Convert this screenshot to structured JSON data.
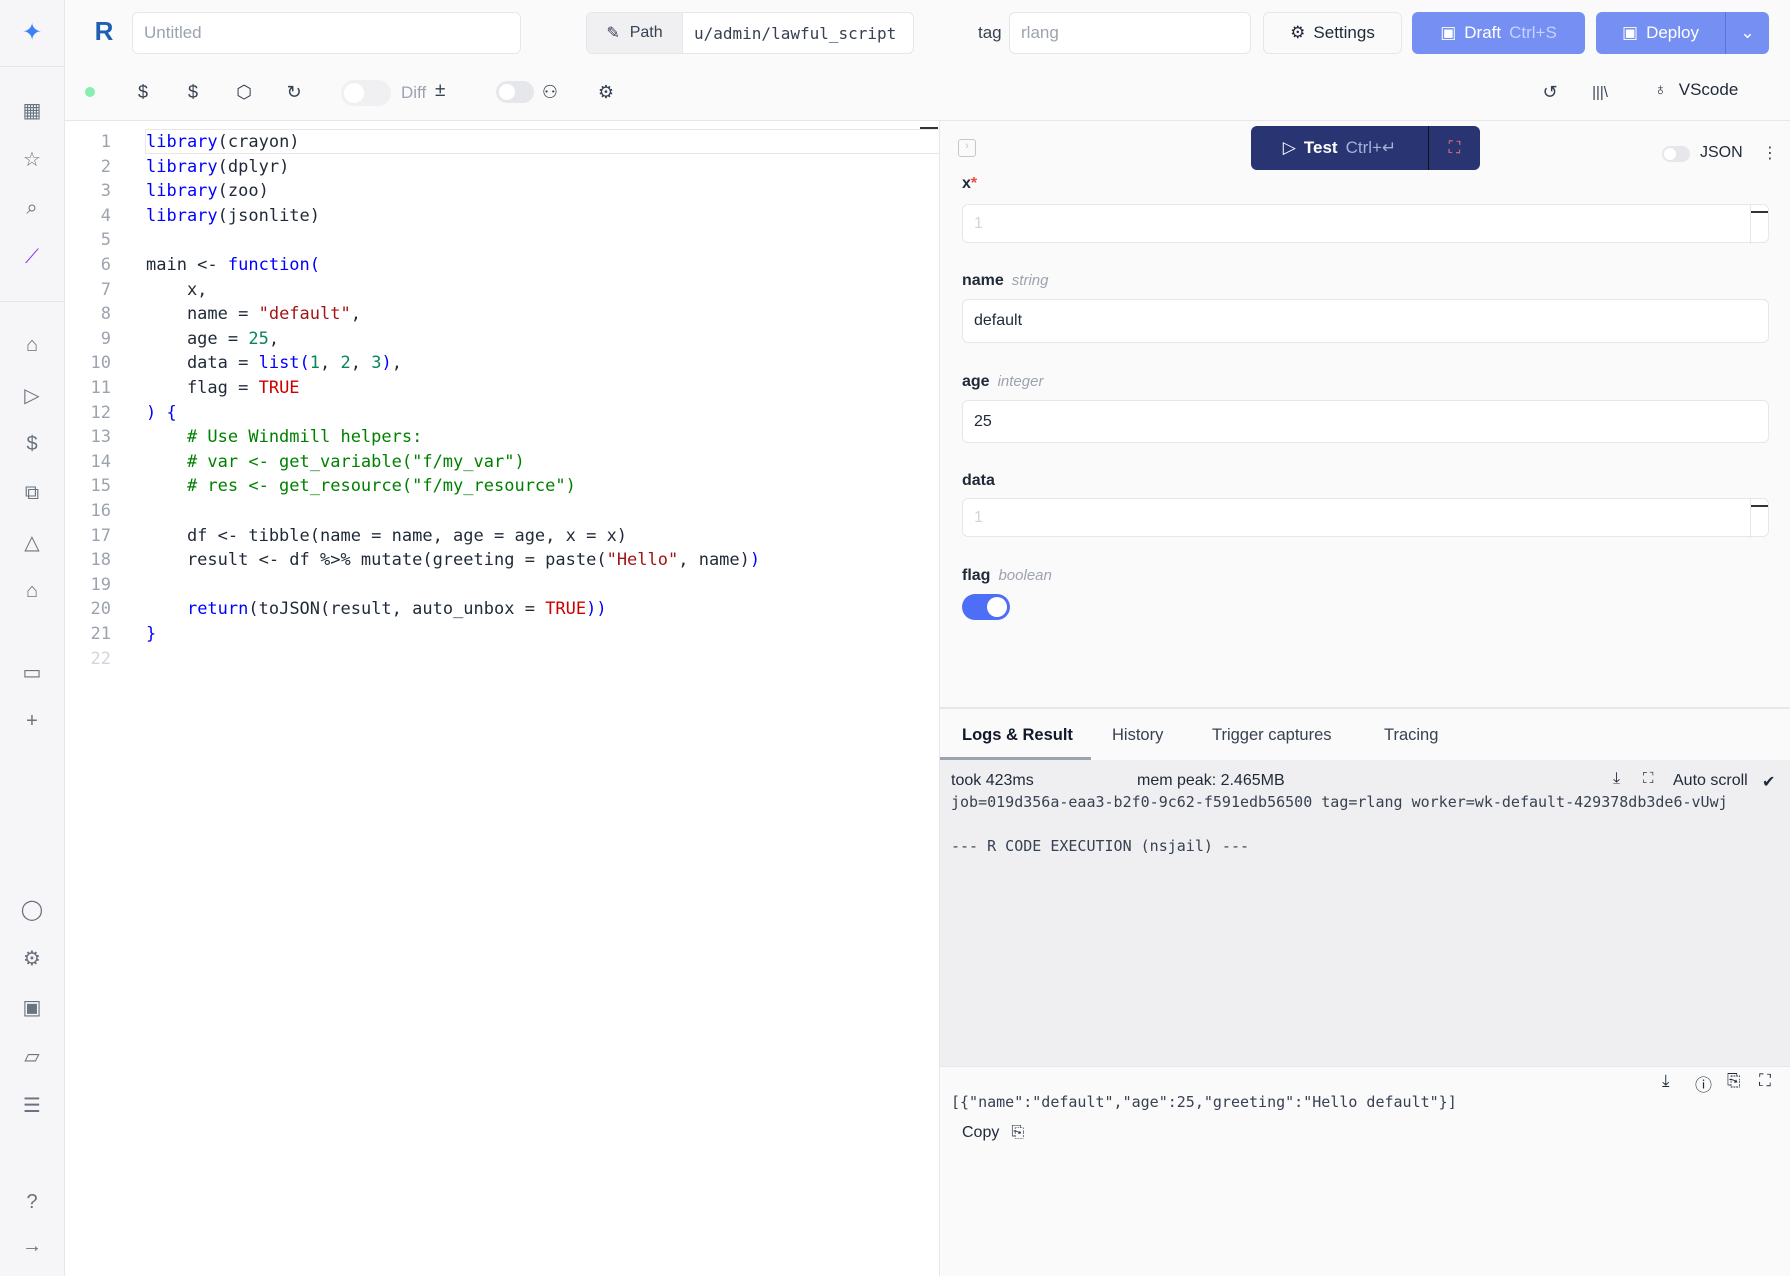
{
  "sidebar": {
    "icons": [
      "windmill-logo-icon",
      "building-icon",
      "star-icon",
      "search-icon",
      "magic-wand-icon",
      "home-icon",
      "play-icon",
      "dollar-icon",
      "boxes-icon",
      "pyramid-icon",
      "graduation-cap-icon",
      "calendar-icon",
      "plus-icon",
      "user-icon",
      "gear-icon",
      "server-icon",
      "folder-icon",
      "list-icon",
      "help-icon",
      "arrow-right-icon"
    ]
  },
  "header": {
    "title_placeholder": "Untitled",
    "path_label": "Path",
    "path_value": "u/admin/lawful_script",
    "tag_label": "tag",
    "tag_placeholder": "rlang",
    "settings_label": "Settings",
    "draft_label": "Draft",
    "draft_shortcut": "Ctrl+S",
    "deploy_label": "Deploy"
  },
  "toolbar": {
    "diff_label": "Diff",
    "diff_symbol": "±",
    "vscode_label": "VScode",
    "status_color": "#86efac"
  },
  "editor": {
    "lines": [
      [
        [
          "library",
          "kw"
        ],
        [
          "(crayon)",
          "pl"
        ]
      ],
      [
        [
          "library",
          "kw"
        ],
        [
          "(dplyr)",
          "pl"
        ]
      ],
      [
        [
          "library",
          "kw"
        ],
        [
          "(zoo)",
          "pl"
        ]
      ],
      [
        [
          "library",
          "kw"
        ],
        [
          "(jsonlite)",
          "pl"
        ]
      ],
      [],
      [
        [
          "main <- ",
          "pl"
        ],
        [
          "function",
          "kw"
        ],
        [
          "(",
          "kw"
        ]
      ],
      [
        [
          "    x,",
          "pl"
        ]
      ],
      [
        [
          "    name = ",
          "pl"
        ],
        [
          "\"default\"",
          "str"
        ],
        [
          ",",
          "pl"
        ]
      ],
      [
        [
          "    age = ",
          "pl"
        ],
        [
          "25",
          "num"
        ],
        [
          ",",
          "pl"
        ]
      ],
      [
        [
          "    data = ",
          "pl"
        ],
        [
          "list",
          "kw"
        ],
        [
          "(",
          "kw"
        ],
        [
          "1",
          "num"
        ],
        [
          ", ",
          "pl"
        ],
        [
          "2",
          "num"
        ],
        [
          ", ",
          "pl"
        ],
        [
          "3",
          "num"
        ],
        [
          ")",
          "kw"
        ],
        [
          ",",
          "pl"
        ]
      ],
      [
        [
          "    flag = ",
          "pl"
        ],
        [
          "TRUE",
          "tru"
        ]
      ],
      [
        [
          ") {",
          "kw"
        ]
      ],
      [
        [
          "    # Use Windmill helpers:",
          "com"
        ]
      ],
      [
        [
          "    # var <- get_variable(\"f/my_var\")",
          "com"
        ]
      ],
      [
        [
          "    # res <- get_resource(\"f/my_resource\")",
          "com"
        ]
      ],
      [],
      [
        [
          "    df <- tibble(name = name, age = age, x = x)",
          "pl"
        ]
      ],
      [
        [
          "    result <- df %>% mutate(greeting = paste(",
          "pl"
        ],
        [
          "\"Hello\"",
          "str"
        ],
        [
          ", name)",
          "pl"
        ],
        [
          ")",
          "kw"
        ]
      ],
      [],
      [
        [
          "    ",
          "pl"
        ],
        [
          "return",
          "kw"
        ],
        [
          "(toJSON(result, auto_unbox = ",
          "pl"
        ],
        [
          "TRUE",
          "tru"
        ],
        [
          "))",
          "kw"
        ]
      ],
      [
        [
          "}",
          "kw"
        ]
      ],
      []
    ]
  },
  "panel": {
    "test_label": "Test",
    "test_shortcut": "Ctrl+↵",
    "json_label": "JSON",
    "fields": [
      {
        "name": "x",
        "required": "*",
        "type": "",
        "value": "",
        "placeholder": "1"
      },
      {
        "name": "name",
        "type": "string",
        "value": "default"
      },
      {
        "name": "age",
        "type": "integer",
        "value": "25"
      },
      {
        "name": "data",
        "type": "",
        "value": "",
        "placeholder": "1"
      },
      {
        "name": "flag",
        "type": "boolean",
        "value": true
      }
    ]
  },
  "logs": {
    "tabs": [
      "Logs & Result",
      "History",
      "Trigger captures",
      "Tracing"
    ],
    "active_tab": 0,
    "took": "took 423ms",
    "mem": "mem peak: 2.465MB",
    "auto_scroll": "Auto scroll",
    "check": "✔",
    "job_line": "job=019d356a-eaa3-b2f0-9c62-f591edb56500 tag=rlang worker=wk-default-429378db3de6-vUwj",
    "exec_line": "--- R CODE EXECUTION (nsjail) ---",
    "result": "[{\"name\":\"default\",\"age\":25,\"greeting\":\"Hello default\"}]",
    "copy_label": "Copy"
  },
  "colors": {
    "accent": "#758ff3",
    "dark_button": "#283572",
    "toggle_on": "#4f6ef7"
  }
}
